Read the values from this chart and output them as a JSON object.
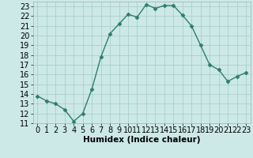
{
  "x": [
    0,
    1,
    2,
    3,
    4,
    5,
    6,
    7,
    8,
    9,
    10,
    11,
    12,
    13,
    14,
    15,
    16,
    17,
    18,
    19,
    20,
    21,
    22,
    23
  ],
  "y": [
    13.8,
    13.3,
    13.0,
    12.4,
    11.2,
    12.0,
    14.5,
    17.8,
    20.2,
    21.2,
    22.2,
    21.9,
    23.2,
    22.8,
    23.1,
    23.1,
    22.1,
    21.0,
    19.0,
    17.0,
    16.5,
    15.3,
    15.8,
    16.2
  ],
  "line_color": "#2e7d6e",
  "marker": "D",
  "marker_size": 2.5,
  "bg_color": "#cce9e7",
  "grid_color": "#aacfcc",
  "xlabel": "Humidex (Indice chaleur)",
  "xlim": [
    -0.5,
    23.5
  ],
  "ylim": [
    11,
    23.5
  ],
  "yticks": [
    11,
    12,
    13,
    14,
    15,
    16,
    17,
    18,
    19,
    20,
    21,
    22,
    23
  ],
  "xticks": [
    0,
    1,
    2,
    3,
    4,
    5,
    6,
    7,
    8,
    9,
    10,
    11,
    12,
    13,
    14,
    15,
    16,
    17,
    18,
    19,
    20,
    21,
    22,
    23
  ],
  "label_fontsize": 7.5,
  "tick_fontsize": 7
}
